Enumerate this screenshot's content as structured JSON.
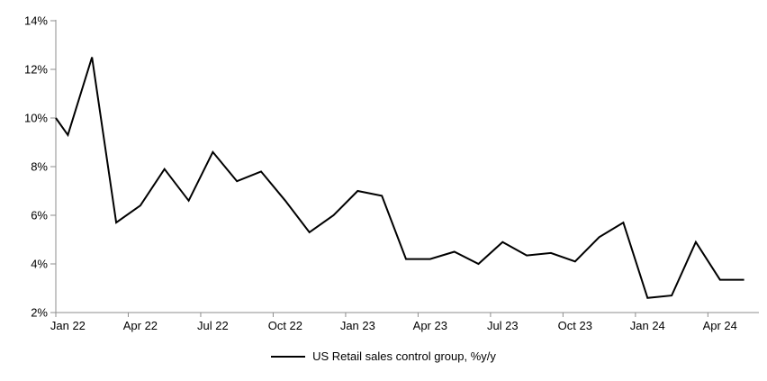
{
  "chart_data": {
    "type": "line",
    "title": "",
    "legend": {
      "position": "bottom-center",
      "entries": [
        "US Retail sales control group, %y/y"
      ]
    },
    "categories": [
      "Jan 22",
      "Feb 22",
      "Mar 22",
      "Apr 22",
      "May 22",
      "Jun 22",
      "Jul 22",
      "Aug 22",
      "Sep 22",
      "Oct 22",
      "Nov 22",
      "Dec 22",
      "Jan 23",
      "Feb 23",
      "Mar 23",
      "Apr 23",
      "May 23",
      "Jun 23",
      "Jul 23",
      "Aug 23",
      "Sep 23",
      "Oct 23",
      "Nov 23",
      "Dec 23",
      "Jan 24",
      "Feb 24",
      "Mar 24",
      "Apr 24",
      "May 24"
    ],
    "series": [
      {
        "name": "US Retail sales control group, %y/y",
        "color": "#000000",
        "values": [
          9.3,
          12.5,
          5.7,
          6.4,
          7.9,
          6.6,
          8.6,
          7.4,
          7.8,
          6.6,
          5.3,
          6.0,
          7.0,
          6.8,
          4.2,
          4.2,
          4.5,
          4.0,
          4.9,
          4.35,
          4.45,
          4.1,
          5.1,
          5.7,
          2.6,
          2.7,
          4.9,
          3.35,
          3.35
        ],
        "edge_start_value_at_left_axis": 10.0
      }
    ],
    "x_tick_labels": [
      "Jan 22",
      "Apr 22",
      "Jul 22",
      "Oct 22",
      "Jan 23",
      "Apr 23",
      "Jul 23",
      "Oct 23",
      "Jan 24",
      "Apr 24"
    ],
    "x_label_interval_months": 3,
    "y_tick_labels": [
      "2%",
      "4%",
      "6%",
      "8%",
      "10%",
      "12%",
      "14%"
    ],
    "ylim": [
      2,
      14
    ],
    "y_step": 2,
    "grid": false,
    "axis_color": "#8e8e8e",
    "text_color": "#000000"
  }
}
